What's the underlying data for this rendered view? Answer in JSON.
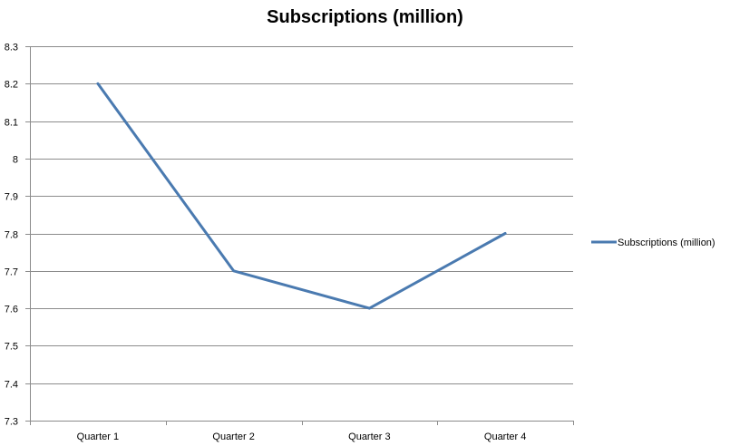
{
  "chart_data": {
    "type": "line",
    "title": "Subscriptions (million)",
    "categories": [
      "Quarter 1",
      "Quarter 2",
      "Quarter 3",
      "Quarter 4"
    ],
    "series": [
      {
        "name": "Subscriptions (million)",
        "values": [
          8.2,
          7.7,
          7.6,
          7.8
        ],
        "color": "#4a7ab0"
      }
    ],
    "y_ticks": [
      "7.3",
      "7.4",
      "7.5",
      "7.6",
      "7.7",
      "7.8",
      "7.9",
      "8",
      "8.1",
      "8.2",
      "8.3"
    ],
    "ylim": [
      7.3,
      8.3
    ],
    "grid": true,
    "legend_position": "right",
    "gridline_color": "#8c8c8c",
    "axis_color": "#8c8c8c"
  }
}
